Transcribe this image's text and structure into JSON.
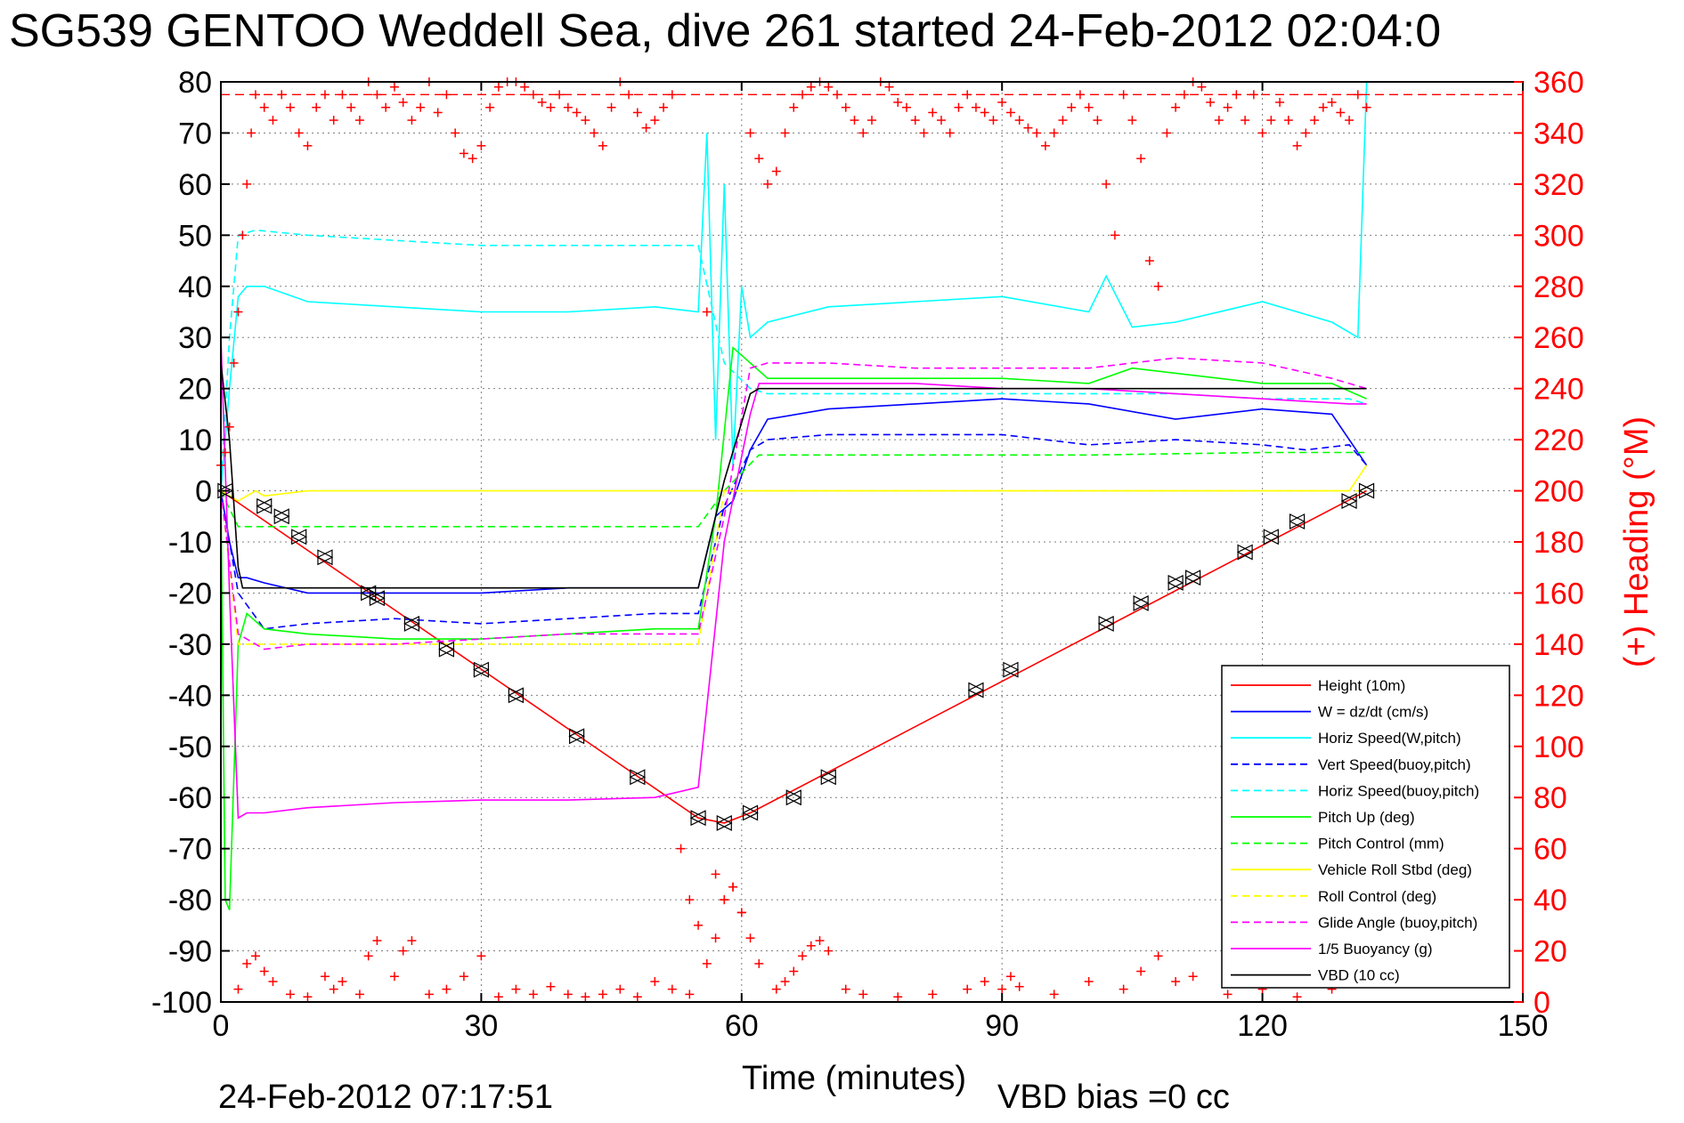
{
  "title": "SG539 GENTOO Weddell Sea, dive 261 started 24-Feb-2012 02:04:0",
  "footer": {
    "timestamp": "24-Feb-2012 07:17:51",
    "vbd_bias": "VBD bias =0 cc"
  },
  "colors": {
    "red": "#ff0000",
    "blue": "#0000ff",
    "cyan": "#00ffff",
    "green": "#00ff00",
    "yellow": "#ffff00",
    "magenta": "#ff00ff",
    "black": "#000000",
    "grid": "#808080"
  },
  "chart_data": {
    "type": "line",
    "title": "SG539 GENTOO Weddell Sea, dive 261 started 24-Feb-2012 02:04:0",
    "xlabel": "Time (minutes)",
    "ylabel_left": "",
    "ylabel_right": "(+) Heading (°M)",
    "xlim": [
      0,
      150
    ],
    "ylim_left": [
      -100,
      80
    ],
    "ylim_right": [
      0,
      360
    ],
    "x_ticks": [
      0,
      30,
      60,
      90,
      120,
      150
    ],
    "y_ticks_left": [
      80,
      70,
      60,
      50,
      40,
      30,
      20,
      10,
      0,
      -10,
      -20,
      -30,
      -40,
      -50,
      -60,
      -70,
      -80,
      -90,
      -100
    ],
    "y_ticks_right": [
      360,
      340,
      320,
      300,
      280,
      260,
      240,
      220,
      200,
      180,
      160,
      140,
      120,
      100,
      80,
      60,
      40,
      20,
      0
    ],
    "grid": true,
    "legend_position": "bottom-right",
    "heading_reference": 355,
    "series": [
      {
        "name": "Height (10m)",
        "color": "#ff0000",
        "dash": "solid",
        "x": [
          0,
          55,
          58,
          61,
          132
        ],
        "y": [
          0,
          -64,
          -65,
          -63,
          0
        ]
      },
      {
        "name": "W = dz/dt (cm/s)",
        "color": "#0000ff",
        "dash": "solid",
        "x": [
          0,
          1,
          2,
          3,
          5,
          10,
          20,
          30,
          40,
          50,
          55,
          57,
          59,
          61,
          63,
          70,
          80,
          90,
          100,
          110,
          120,
          128,
          132
        ],
        "y": [
          0,
          -10,
          -17,
          -17,
          -18,
          -20,
          -20,
          -20,
          -19,
          -19,
          -19,
          -5,
          -2,
          8,
          14,
          16,
          17,
          18,
          17,
          14,
          16,
          15,
          5
        ]
      },
      {
        "name": "Horiz Speed(W,pitch)",
        "color": "#00ffff",
        "dash": "solid",
        "x": [
          0,
          1,
          2,
          3,
          5,
          10,
          20,
          30,
          40,
          50,
          55,
          56,
          57,
          58,
          59,
          60,
          61,
          63,
          70,
          80,
          90,
          100,
          102,
          105,
          110,
          120,
          128,
          131,
          132
        ],
        "y": [
          0,
          20,
          38,
          40,
          40,
          37,
          36,
          35,
          35,
          36,
          35,
          70,
          10,
          60,
          5,
          40,
          30,
          33,
          36,
          37,
          38,
          35,
          42,
          32,
          33,
          37,
          33,
          30,
          80
        ]
      },
      {
        "name": "Vert Speed(buoy,pitch)",
        "color": "#0000ff",
        "dash": "dashed",
        "x": [
          0,
          2,
          5,
          10,
          20,
          30,
          40,
          50,
          55,
          58,
          61,
          63,
          70,
          80,
          90,
          100,
          110,
          120,
          125,
          130,
          132
        ],
        "y": [
          0,
          -20,
          -27,
          -26,
          -25,
          -26,
          -25,
          -24,
          -24,
          -3,
          8,
          10,
          11,
          11,
          11,
          9,
          10,
          9,
          8,
          9,
          5
        ]
      },
      {
        "name": "Horiz Speed(buoy,pitch)",
        "color": "#00ffff",
        "dash": "dashed",
        "x": [
          0,
          1,
          2,
          4,
          10,
          20,
          30,
          40,
          50,
          55,
          58,
          61,
          63,
          70,
          80,
          90,
          100,
          110,
          120,
          130,
          132
        ],
        "y": [
          0,
          30,
          50,
          51,
          50,
          49,
          48,
          48,
          48,
          48,
          25,
          20,
          19,
          19,
          19,
          19,
          19,
          19,
          18,
          18,
          17
        ]
      },
      {
        "name": "Pitch Up (deg)",
        "color": "#00ff00",
        "dash": "solid",
        "x": [
          0,
          0.5,
          1,
          2,
          3,
          5,
          10,
          20,
          30,
          40,
          50,
          55,
          57,
          59,
          61,
          63,
          70,
          80,
          90,
          100,
          105,
          110,
          120,
          128,
          132
        ],
        "y": [
          0,
          -80,
          -82,
          -30,
          -24,
          -27,
          -28,
          -29,
          -29,
          -28,
          -27,
          -27,
          -5,
          28,
          25,
          22,
          22,
          22,
          22,
          21,
          24,
          23,
          21,
          21,
          18
        ]
      },
      {
        "name": "Pitch Control (mm)",
        "color": "#00ff00",
        "dash": "dashed",
        "x": [
          0,
          2,
          5,
          20,
          40,
          55,
          58,
          62,
          70,
          90,
          100,
          120,
          130,
          132
        ],
        "y": [
          0,
          -7,
          -7,
          -7,
          -7,
          -7,
          0,
          7,
          7,
          7,
          7,
          7.5,
          7.5,
          7.5
        ]
      },
      {
        "name": "Vehicle Roll Stbd (deg)",
        "color": "#ffff00",
        "dash": "solid",
        "x": [
          0,
          2,
          3,
          4,
          5,
          10,
          20,
          30,
          40,
          50,
          55,
          60,
          70,
          80,
          90,
          100,
          110,
          120,
          130,
          132
        ],
        "y": [
          0,
          -2,
          -1,
          0,
          -1,
          0,
          0,
          0,
          0,
          0,
          0,
          0,
          0,
          0,
          0,
          0,
          0,
          0,
          0,
          5
        ]
      },
      {
        "name": "Roll Control (deg)",
        "color": "#ffff00",
        "dash": "dashed",
        "x": [
          0,
          2,
          5,
          20,
          40,
          55,
          58,
          62,
          70,
          90,
          100,
          120,
          130,
          132
        ],
        "y": [
          0,
          -30,
          -30,
          -30,
          -30,
          -30,
          0,
          0,
          0,
          0,
          0,
          0,
          0,
          0
        ]
      },
      {
        "name": "Glide Angle (buoy,pitch)",
        "color": "#ff00ff",
        "dash": "dashed",
        "x": [
          0,
          2,
          5,
          10,
          20,
          30,
          40,
          50,
          55,
          58,
          61,
          63,
          70,
          80,
          90,
          100,
          110,
          120,
          128,
          132
        ],
        "y": [
          0,
          -28,
          -31,
          -30,
          -30,
          -29,
          -28,
          -28,
          -28,
          -5,
          24,
          25,
          25,
          24,
          24,
          24,
          26,
          25,
          22,
          20
        ]
      },
      {
        "name": "1/5 Buoyancy (g)",
        "color": "#ff00ff",
        "dash": "solid",
        "x": [
          0,
          1,
          2,
          3,
          5,
          10,
          20,
          30,
          40,
          50,
          55,
          58,
          61,
          62,
          70,
          80,
          90,
          100,
          110,
          120,
          130,
          132
        ],
        "y": [
          30,
          -20,
          -64,
          -63,
          -63,
          -62,
          -61,
          -60.5,
          -60.5,
          -60,
          -58,
          -10,
          15,
          21,
          21,
          21,
          20,
          20,
          19,
          18,
          17,
          17
        ]
      },
      {
        "name": "VBD (10 cc)",
        "color": "#000000",
        "dash": "solid",
        "x": [
          0,
          1,
          2,
          2.5,
          10,
          20,
          30,
          40,
          50,
          55,
          58,
          61,
          62,
          70,
          90,
          110,
          132
        ],
        "y": [
          25,
          10,
          -15,
          -19,
          -19,
          -19,
          -19,
          -19,
          -19,
          -19,
          2,
          19,
          20,
          20,
          20,
          20,
          20
        ]
      }
    ],
    "heading": {
      "name": "(+) Heading",
      "color": "#ff0000",
      "marker": "+",
      "axis": "right",
      "x": [
        0,
        0.5,
        1,
        1.5,
        2,
        2.5,
        3,
        3.5,
        4,
        5,
        6,
        7,
        8,
        9,
        10,
        11,
        12,
        13,
        14,
        15,
        16,
        17,
        18,
        19,
        20,
        21,
        22,
        23,
        24,
        25,
        26,
        27,
        28,
        29,
        30,
        31,
        32,
        33,
        34,
        35,
        36,
        37,
        38,
        39,
        40,
        41,
        42,
        43,
        44,
        45,
        46,
        47,
        48,
        49,
        50,
        51,
        52,
        53,
        54,
        55,
        56,
        57,
        58,
        59,
        60,
        61,
        62,
        63,
        64,
        65,
        66,
        67,
        68,
        69,
        70,
        71,
        72,
        73,
        74,
        75,
        76,
        77,
        78,
        79,
        80,
        81,
        82,
        83,
        84,
        85,
        86,
        87,
        88,
        89,
        90,
        91,
        92,
        93,
        94,
        95,
        96,
        97,
        98,
        99,
        100,
        101,
        102,
        103,
        104,
        105,
        106,
        107,
        108,
        109,
        110,
        111,
        112,
        113,
        114,
        115,
        116,
        117,
        118,
        119,
        120,
        121,
        122,
        123,
        124,
        125,
        126,
        127,
        128,
        129,
        130,
        131,
        132
      ],
      "y": [
        210,
        215,
        225,
        250,
        270,
        300,
        320,
        340,
        355,
        350,
        345,
        355,
        350,
        340,
        335,
        350,
        355,
        345,
        355,
        350,
        345,
        360,
        355,
        350,
        358,
        352,
        345,
        350,
        360,
        348,
        355,
        340,
        332,
        330,
        335,
        350,
        358,
        360,
        360,
        358,
        355,
        352,
        350,
        355,
        350,
        348,
        345,
        340,
        335,
        350,
        360,
        355,
        348,
        342,
        345,
        350,
        355,
        60,
        40,
        30,
        270,
        50,
        40,
        45,
        35,
        340,
        330,
        320,
        325,
        340,
        350,
        355,
        358,
        360,
        358,
        355,
        350,
        345,
        340,
        345,
        360,
        358,
        352,
        350,
        345,
        340,
        348,
        345,
        340,
        350,
        355,
        350,
        348,
        345,
        352,
        348,
        345,
        342,
        340,
        335,
        340,
        345,
        350,
        355,
        350,
        345,
        320,
        300,
        355,
        345,
        330,
        290,
        280,
        340,
        350,
        355,
        360,
        358,
        352,
        345,
        350,
        355,
        345,
        355,
        340,
        345,
        352,
        345,
        335,
        340,
        345,
        350,
        352,
        348,
        345,
        355,
        350
      ]
    },
    "heading_bottom": {
      "color": "#ff0000",
      "marker": "+",
      "axis": "right",
      "x": [
        2,
        3,
        4,
        5,
        6,
        8,
        10,
        12,
        13,
        14,
        16,
        17,
        18,
        20,
        21,
        22,
        24,
        26,
        28,
        30,
        32,
        34,
        36,
        38,
        40,
        42,
        44,
        46,
        48,
        50,
        52,
        54,
        56,
        57,
        58,
        59,
        60,
        61,
        62,
        64,
        65,
        66,
        67,
        68,
        69,
        70,
        72,
        74,
        78,
        82,
        86,
        88,
        90,
        91,
        92,
        96,
        100,
        104,
        106,
        108,
        110,
        112,
        116,
        120,
        124,
        128,
        131
      ],
      "y": [
        5,
        15,
        18,
        12,
        8,
        3,
        2,
        10,
        5,
        8,
        3,
        18,
        24,
        10,
        20,
        24,
        3,
        5,
        10,
        18,
        2,
        5,
        3,
        6,
        3,
        2,
        3,
        5,
        2,
        8,
        5,
        3,
        15,
        25,
        40,
        45,
        35,
        25,
        15,
        5,
        8,
        12,
        18,
        22,
        24,
        20,
        5,
        3,
        2,
        3,
        5,
        8,
        5,
        10,
        6,
        3,
        8,
        5,
        12,
        18,
        8,
        10,
        3,
        5,
        2,
        5,
        8
      ]
    },
    "markers": {
      "x": [
        0.5,
        5,
        7,
        9,
        12,
        17,
        18,
        22,
        26,
        30,
        34,
        41,
        48,
        55,
        58,
        61,
        66,
        70,
        87,
        91,
        102,
        106,
        110,
        112,
        118,
        121,
        124,
        130,
        132
      ],
      "y": [
        0,
        -3,
        -5,
        -9,
        -13,
        -20,
        -21,
        -26,
        -31,
        -35,
        -40,
        -48,
        -56,
        -64,
        -65,
        -63,
        -60,
        -56,
        -39,
        -35,
        -26,
        -22,
        -18,
        -17,
        -12,
        -9,
        -6,
        -2,
        0
      ]
    }
  }
}
